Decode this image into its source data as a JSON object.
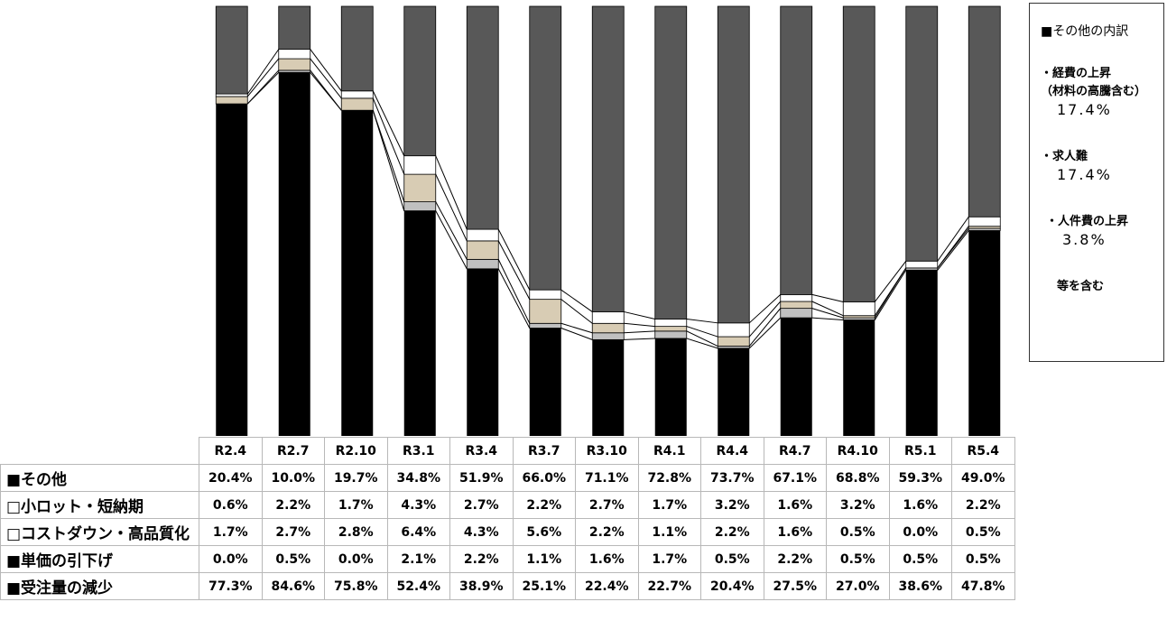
{
  "chart_data": {
    "type": "bar",
    "stacked": true,
    "normalized_100": true,
    "categories": [
      "R2.4",
      "R2.7",
      "R2.10",
      "R3.1",
      "R3.4",
      "R3.7",
      "R3.10",
      "R4.1",
      "R4.4",
      "R4.7",
      "R4.10",
      "R5.1",
      "R5.4"
    ],
    "series": [
      {
        "name": "■受注量の減少",
        "color": "#000000",
        "values": [
          77.3,
          84.6,
          75.8,
          52.4,
          38.9,
          25.1,
          22.4,
          22.7,
          20.4,
          27.5,
          27.0,
          38.6,
          47.8
        ],
        "labels": [
          "77.3%",
          "84.6%",
          "75.8%",
          "52.4%",
          "38.9%",
          "25.1%",
          "22.4%",
          "22.7%",
          "20.4%",
          "27.5%",
          "27.0%",
          "38.6%",
          "47.8%"
        ]
      },
      {
        "name": "■単価の引下げ",
        "color": "#c0c0c0",
        "values": [
          0.0,
          0.5,
          0.0,
          2.1,
          2.2,
          1.1,
          1.6,
          1.7,
          0.5,
          2.2,
          0.5,
          0.5,
          0.5
        ],
        "labels": [
          "0.0%",
          "0.5%",
          "0.0%",
          "2.1%",
          "2.2%",
          "1.1%",
          "1.6%",
          "1.7%",
          "0.5%",
          "2.2%",
          "0.5%",
          "0.5%",
          "0.5%"
        ]
      },
      {
        "name": "□コストダウン・高品質化",
        "color": "#d8ccb4",
        "values": [
          1.7,
          2.7,
          2.8,
          6.4,
          4.3,
          5.6,
          2.2,
          1.1,
          2.2,
          1.6,
          0.5,
          0.0,
          0.5
        ],
        "labels": [
          "1.7%",
          "2.7%",
          "2.8%",
          "6.4%",
          "4.3%",
          "5.6%",
          "2.2%",
          "1.1%",
          "2.2%",
          "1.6%",
          "0.5%",
          "0.0%",
          "0.5%"
        ]
      },
      {
        "name": "□小ロット・短納期",
        "color": "#ffffff",
        "values": [
          0.6,
          2.2,
          1.7,
          4.3,
          2.7,
          2.2,
          2.7,
          1.7,
          3.2,
          1.6,
          3.2,
          1.6,
          2.2
        ],
        "labels": [
          "0.6%",
          "2.2%",
          "1.7%",
          "4.3%",
          "2.7%",
          "2.2%",
          "2.7%",
          "1.7%",
          "3.2%",
          "1.6%",
          "3.2%",
          "1.6%",
          "2.2%"
        ]
      },
      {
        "name": "■その他",
        "color": "#585858",
        "values": [
          20.4,
          10.0,
          19.7,
          34.8,
          51.9,
          66.0,
          71.1,
          72.8,
          73.7,
          67.1,
          68.8,
          59.3,
          49.0
        ],
        "labels": [
          "20.4%",
          "10.0%",
          "19.7%",
          "34.8%",
          "51.9%",
          "66.0%",
          "71.1%",
          "72.8%",
          "73.7%",
          "67.1%",
          "68.8%",
          "59.3%",
          "49.0%"
        ]
      }
    ],
    "table_rows_order": [
      4,
      3,
      2,
      1,
      0
    ],
    "ylim": [
      0,
      100
    ],
    "legend": "data table below chart"
  },
  "note_box": {
    "title": "■その他の内訳",
    "item1_label_1": "・経費の上昇",
    "item1_label_2": "（材料の高騰含む）",
    "item1_value": "17.4%",
    "item2_label": "・求人難",
    "item2_value": "17.4%",
    "item3_label": "・人件費の上昇",
    "item3_value": "3.8%",
    "footer": "等を含む"
  }
}
